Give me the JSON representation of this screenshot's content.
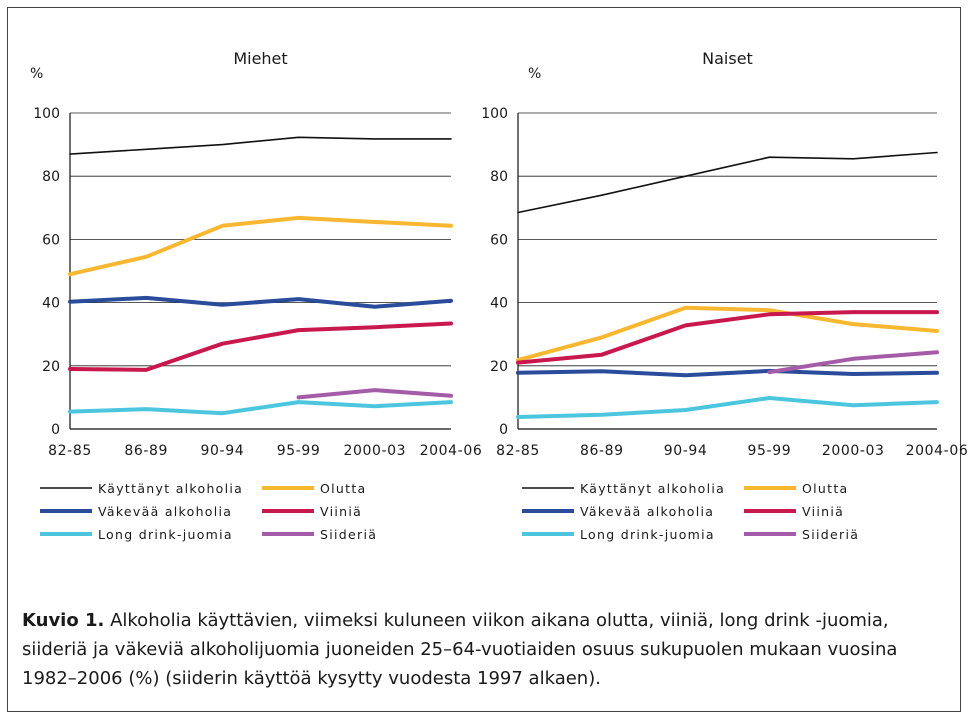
{
  "chart_data": [
    {
      "type": "line",
      "title": "Miehet",
      "ylabel": "%",
      "xlabel": "",
      "ylim": [
        0,
        100
      ],
      "yticks": [
        0,
        20,
        40,
        60,
        80,
        100
      ],
      "grid": true,
      "legend_position": "bottom",
      "categories": [
        "82-85",
        "86-89",
        "90-94",
        "95-99",
        "2000-03",
        "2004-06"
      ],
      "series": [
        {
          "name": "Käyttänyt alkoholia",
          "color": "#111111",
          "values": [
            87,
            88.5,
            90,
            92.3,
            91.8,
            91.8
          ]
        },
        {
          "name": "Olutta",
          "color": "#f7b731",
          "values": [
            49,
            54.5,
            64.3,
            66.8,
            65.5,
            64.3
          ]
        },
        {
          "name": "Väkevää alkoholia",
          "color": "#2b4c9a",
          "values": [
            40.3,
            41.5,
            39.3,
            41.1,
            38.7,
            40.6
          ]
        },
        {
          "name": "Viiniä",
          "color": "#c8184e",
          "values": [
            19,
            18.7,
            27,
            31.3,
            32.2,
            33.4
          ]
        },
        {
          "name": "Long drink-juomia",
          "color": "#4cc6df",
          "values": [
            5.5,
            6.3,
            5,
            8.5,
            7.2,
            8.5
          ]
        },
        {
          "name": "Siideriä",
          "color": "#a45ca8",
          "values": [
            null,
            null,
            null,
            10,
            12.3,
            10.5
          ]
        }
      ]
    },
    {
      "type": "line",
      "title": "Naiset",
      "ylabel": "%",
      "xlabel": "",
      "ylim": [
        0,
        100
      ],
      "yticks": [
        0,
        20,
        40,
        60,
        80,
        100
      ],
      "grid": true,
      "legend_position": "bottom",
      "categories": [
        "82-85",
        "86-89",
        "90-94",
        "95-99",
        "2000-03",
        "2004-06"
      ],
      "series": [
        {
          "name": "Käyttänyt alkoholia",
          "color": "#111111",
          "values": [
            68.5,
            74,
            80,
            86,
            85.5,
            87.5
          ]
        },
        {
          "name": "Olutta",
          "color": "#f7b731",
          "values": [
            21.8,
            29,
            38.4,
            37.6,
            33.2,
            31
          ]
        },
        {
          "name": "Väkevää alkoholia",
          "color": "#2b4c9a",
          "values": [
            17.8,
            18.3,
            17,
            18.4,
            17.4,
            17.8
          ]
        },
        {
          "name": "Viiniä",
          "color": "#c8184e",
          "values": [
            21,
            23.5,
            32.8,
            36.3,
            37,
            37
          ]
        },
        {
          "name": "Long drink-juomia",
          "color": "#4cc6df",
          "values": [
            3.8,
            4.5,
            6,
            9.8,
            7.5,
            8.5
          ]
        },
        {
          "name": "Siideriä",
          "color": "#a45ca8",
          "values": [
            null,
            null,
            null,
            18,
            22.2,
            24.3
          ]
        }
      ]
    }
  ],
  "caption": {
    "label": "Kuvio 1.",
    "text": " Alkoholia käyttävien, viimeksi kuluneen viikon aikana olutta, viiniä, long drink -juomia, siideriä ja väkeviä alkoholijuomia juoneiden 25–64-vuotiaiden osuus sukupuolen mukaan vuosina 1982–2006 (%) (siiderin käyttöä kysytty vuodesta 1997 alkaen)."
  }
}
